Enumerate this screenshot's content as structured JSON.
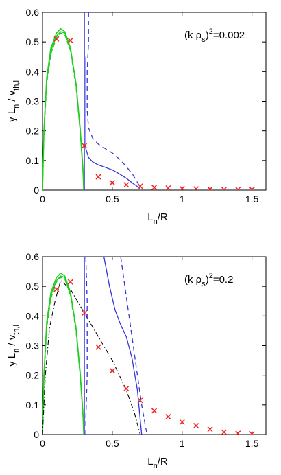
{
  "colors": {
    "green": "#22cc22",
    "blue": "#3333dd",
    "red": "#ee2222",
    "black": "#000000"
  },
  "chart_data": [
    {
      "type": "line",
      "annotation": {
        "base": "(k ρ",
        "sub": "s",
        "sup": "2",
        "suffix": "=0.002"
      },
      "xlabel": {
        "base": "L",
        "sub": "n",
        "suffix": "/R"
      },
      "ylabel": {
        "g": "γ L",
        "sub1": "n",
        "mid": " / v",
        "sub2": "th,i"
      },
      "xlim": [
        0,
        1.6
      ],
      "ylim": [
        0,
        0.6
      ],
      "xticks": [
        0,
        0.5,
        1,
        1.5
      ],
      "xtick_labels": [
        "0",
        "0.5",
        "1",
        "1.5"
      ],
      "yticks": [
        0,
        0.1,
        0.2,
        0.3,
        0.4,
        0.5,
        0.6
      ],
      "ytick_labels": [
        "0",
        "0.1",
        "0.2",
        "0.3",
        "0.4",
        "0.5",
        "0.6"
      ],
      "series": [
        {
          "style": "green-solid",
          "x": [
            0,
            0.01,
            0.03,
            0.06,
            0.1,
            0.13,
            0.16,
            0.2,
            0.24,
            0.27,
            0.29,
            0.295
          ],
          "y": [
            0,
            0.2,
            0.38,
            0.48,
            0.53,
            0.545,
            0.535,
            0.48,
            0.36,
            0.2,
            0.06,
            0
          ]
        },
        {
          "style": "green-solid",
          "x": [
            0,
            0.01,
            0.03,
            0.06,
            0.1,
            0.13,
            0.16,
            0.2,
            0.24,
            0.27,
            0.29,
            0.3
          ],
          "y": [
            0,
            0.19,
            0.37,
            0.47,
            0.52,
            0.535,
            0.53,
            0.475,
            0.36,
            0.21,
            0.07,
            0
          ]
        },
        {
          "style": "green-dashed",
          "x": [
            0,
            0.01,
            0.03,
            0.06,
            0.1,
            0.13,
            0.16,
            0.2,
            0.24,
            0.27,
            0.29,
            0.3
          ],
          "y": [
            0,
            0.18,
            0.36,
            0.46,
            0.515,
            0.53,
            0.525,
            0.47,
            0.35,
            0.2,
            0.07,
            0
          ]
        },
        {
          "style": "blue-solid",
          "x": [
            0.3,
            0.3
          ],
          "y": [
            0,
            0.6
          ]
        },
        {
          "style": "blue-solid",
          "x": [
            0.31,
            0.31,
            0.33,
            0.36,
            0.4,
            0.45,
            0.5,
            0.55,
            0.6,
            0.65,
            0.7
          ],
          "y": [
            0.45,
            0.14,
            0.11,
            0.095,
            0.085,
            0.077,
            0.068,
            0.055,
            0.04,
            0.022,
            0.005
          ]
        },
        {
          "style": "blue-dashed",
          "x": [
            0.33,
            0.33,
            0.32,
            0.32,
            0.33,
            0.36,
            0.4,
            0.45,
            0.5,
            0.55,
            0.6,
            0.65,
            0.7
          ],
          "y": [
            0.6,
            0.5,
            0.4,
            0.27,
            0.21,
            0.175,
            0.155,
            0.14,
            0.125,
            0.105,
            0.08,
            0.05,
            0.01
          ]
        },
        {
          "style": "red-x",
          "x": [
            0.1,
            0.2,
            0.3,
            0.4,
            0.5,
            0.6,
            0.7,
            0.8,
            0.9,
            1.0,
            1.1,
            1.2,
            1.3,
            1.4,
            1.5
          ],
          "y": [
            0.51,
            0.505,
            0.15,
            0.045,
            0.025,
            0.018,
            0.013,
            0.009,
            0.007,
            0.005,
            0.004,
            0.003,
            0.002,
            0.002,
            0.002
          ]
        }
      ]
    },
    {
      "type": "line",
      "annotation": {
        "base": "(k ρ",
        "sub": "s",
        "sup": "2",
        "suffix": "=0.2"
      },
      "xlabel": {
        "base": "L",
        "sub": "n",
        "suffix": "/R"
      },
      "ylabel": {
        "g": "γ L",
        "sub1": "n",
        "mid": " / v",
        "sub2": "th,i"
      },
      "xlim": [
        0,
        1.6
      ],
      "ylim": [
        0,
        0.6
      ],
      "xticks": [
        0,
        0.5,
        1,
        1.5
      ],
      "xtick_labels": [
        "0",
        "0.5",
        "1",
        "1.5"
      ],
      "yticks": [
        0,
        0.1,
        0.2,
        0.3,
        0.4,
        0.5,
        0.6
      ],
      "ytick_labels": [
        "0",
        "0.1",
        "0.2",
        "0.3",
        "0.4",
        "0.5",
        "0.6"
      ],
      "series": [
        {
          "style": "green-solid",
          "x": [
            0,
            0.01,
            0.03,
            0.06,
            0.1,
            0.13,
            0.16,
            0.2,
            0.24,
            0.27,
            0.29,
            0.295
          ],
          "y": [
            0,
            0.2,
            0.38,
            0.48,
            0.53,
            0.545,
            0.535,
            0.48,
            0.36,
            0.2,
            0.06,
            0
          ]
        },
        {
          "style": "green-solid",
          "x": [
            0,
            0.01,
            0.03,
            0.06,
            0.1,
            0.13,
            0.16,
            0.2,
            0.24,
            0.27,
            0.29,
            0.3
          ],
          "y": [
            0,
            0.19,
            0.37,
            0.47,
            0.52,
            0.535,
            0.53,
            0.475,
            0.36,
            0.21,
            0.07,
            0
          ]
        },
        {
          "style": "green-dashed",
          "x": [
            0,
            0.01,
            0.03,
            0.06,
            0.1,
            0.13,
            0.16,
            0.2,
            0.24,
            0.27,
            0.29,
            0.3
          ],
          "y": [
            0,
            0.18,
            0.36,
            0.46,
            0.515,
            0.53,
            0.525,
            0.47,
            0.35,
            0.2,
            0.07,
            0
          ]
        },
        {
          "style": "black-dashdot",
          "x": [
            0,
            0.02,
            0.05,
            0.09,
            0.13,
            0.2,
            0.3,
            0.4,
            0.5,
            0.6,
            0.66,
            0.7
          ],
          "y": [
            0,
            0.2,
            0.36,
            0.45,
            0.52,
            0.49,
            0.41,
            0.33,
            0.25,
            0.15,
            0.07,
            0
          ]
        },
        {
          "style": "blue-solid",
          "x": [
            0.3,
            0.3
          ],
          "y": [
            0,
            0.6
          ]
        },
        {
          "style": "blue-solid",
          "x": [
            0.44,
            0.48,
            0.52,
            0.56,
            0.6,
            0.64,
            0.68,
            0.7,
            0.71
          ],
          "y": [
            0.6,
            0.5,
            0.42,
            0.37,
            0.33,
            0.26,
            0.15,
            0.05,
            0
          ]
        },
        {
          "style": "blue-dashed",
          "x": [
            0.31,
            0.32,
            0.32,
            0.31,
            0.31
          ],
          "y": [
            0.6,
            0.45,
            0.2,
            0.05,
            0
          ]
        },
        {
          "style": "blue-dashed",
          "x": [
            0.56,
            0.59,
            0.62,
            0.65,
            0.68,
            0.71,
            0.74,
            0.75
          ],
          "y": [
            0.6,
            0.5,
            0.4,
            0.3,
            0.2,
            0.1,
            0.02,
            0
          ]
        },
        {
          "style": "red-x",
          "x": [
            0.1,
            0.2,
            0.3,
            0.4,
            0.5,
            0.6,
            0.7,
            0.8,
            0.9,
            1.0,
            1.1,
            1.2,
            1.3,
            1.4,
            1.5
          ],
          "y": [
            0.49,
            0.515,
            0.41,
            0.295,
            0.215,
            0.155,
            0.115,
            0.08,
            0.06,
            0.042,
            0.03,
            0.018,
            0.008,
            0.004,
            0.002
          ]
        }
      ]
    }
  ]
}
